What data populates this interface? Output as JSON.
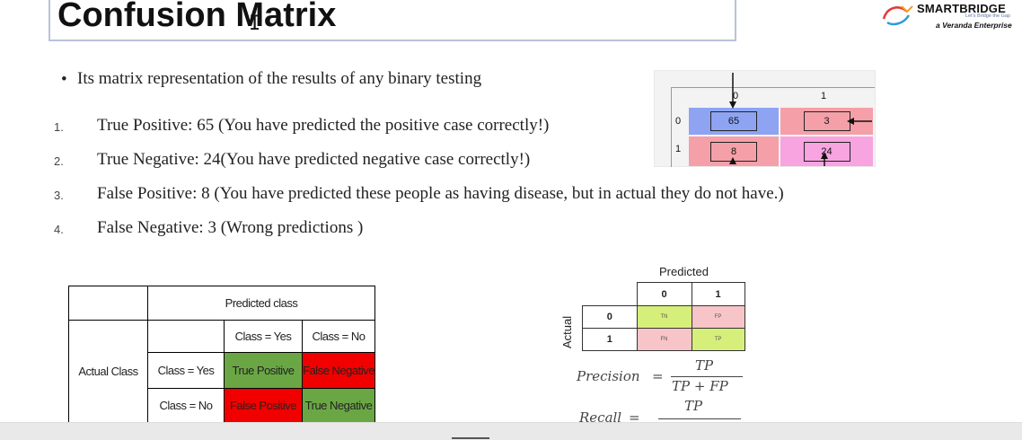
{
  "slide": {
    "title": "Confusion Matrix",
    "logo": {
      "name": "SMARTBRIDGE",
      "tagline": "Let's Bridge the Gap",
      "sub": "a Veranda Enterprise"
    },
    "bullet": "Its matrix representation of the results of  any binary testing",
    "items": [
      {
        "num": "1.",
        "text": "True Positive: 65 (You have predicted the positive case correctly!)"
      },
      {
        "num": "2.",
        "text": "True Negative: 24(You have predicted negative case correctly!)"
      },
      {
        "num": "3.",
        "text": "False Positive: 8 (You have predicted these people as having disease, but in actual they do not have.)"
      },
      {
        "num": "4.",
        "text": "False Negative: 3 (Wrong predictions )"
      }
    ]
  },
  "crop_matrix": {
    "col_labels": [
      "0",
      "1"
    ],
    "row_labels": [
      "0",
      "1"
    ],
    "cells": [
      [
        "65",
        "3"
      ],
      [
        "8",
        "24"
      ]
    ]
  },
  "class_table": {
    "predicted_class": "Predicted class",
    "actual_class": "Actual Class",
    "col_yes": "Class = Yes",
    "col_no": "Class = No",
    "row_yes": "Class = Yes",
    "row_no": "Class = No",
    "tp": "True Positive",
    "fn": "False Negative",
    "fp": "False Positive",
    "tn": "True Negative"
  },
  "matrix": {
    "predicted": "Predicted",
    "actual": "Actual",
    "col0": "0",
    "col1": "1",
    "row0": "0",
    "row1": "1",
    "tn": "TN",
    "fp": "FP",
    "fn": "FN",
    "tp": "TP"
  },
  "formulas": {
    "precision_label": "Precision",
    "eq": "=",
    "precision_num": "TP",
    "precision_den": "TP + FP",
    "recall_label": "Recall",
    "recall_num": "TP"
  },
  "colors": {
    "green": "#6aa744",
    "red": "#f20000",
    "blue_cell": "#8ea4f3",
    "pink_cell": "#f5a0a8",
    "magenta_cell": "#f7a4e0",
    "light_green": "#d6ef7a",
    "light_pink": "#f7c4c8"
  }
}
